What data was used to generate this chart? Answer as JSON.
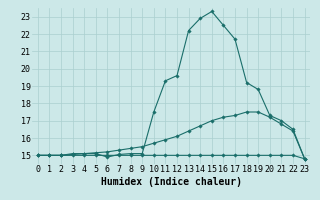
{
  "xlabel": "Humidex (Indice chaleur)",
  "ylabel": "",
  "background_color": "#cce8e8",
  "grid_color": "#aacfcf",
  "line_color": "#1a6e6a",
  "x_values": [
    0,
    1,
    2,
    3,
    4,
    5,
    6,
    7,
    8,
    9,
    10,
    11,
    12,
    13,
    14,
    15,
    16,
    17,
    18,
    19,
    20,
    21,
    22,
    23
  ],
  "line1": [
    15.0,
    15.0,
    15.0,
    15.0,
    15.0,
    15.0,
    15.0,
    15.0,
    15.0,
    15.0,
    15.0,
    15.0,
    15.0,
    15.0,
    15.0,
    15.0,
    15.0,
    15.0,
    15.0,
    15.0,
    15.0,
    15.0,
    15.0,
    14.8
  ],
  "line2": [
    15.0,
    15.0,
    15.0,
    15.05,
    15.1,
    15.15,
    15.2,
    15.3,
    15.4,
    15.5,
    15.7,
    15.9,
    16.1,
    16.4,
    16.7,
    17.0,
    17.2,
    17.3,
    17.5,
    17.5,
    17.2,
    16.8,
    16.4,
    14.8
  ],
  "line3": [
    15.0,
    15.0,
    15.0,
    15.1,
    15.1,
    15.1,
    14.9,
    15.05,
    15.1,
    15.1,
    17.5,
    19.3,
    19.6,
    22.2,
    22.9,
    23.3,
    22.5,
    21.7,
    19.2,
    18.8,
    17.3,
    17.0,
    16.5,
    14.8
  ],
  "ylim": [
    14.5,
    23.5
  ],
  "xlim": [
    -0.5,
    23.5
  ],
  "yticks": [
    15,
    16,
    17,
    18,
    19,
    20,
    21,
    22,
    23
  ],
  "xticks": [
    0,
    1,
    2,
    3,
    4,
    5,
    6,
    7,
    8,
    9,
    10,
    11,
    12,
    13,
    14,
    15,
    16,
    17,
    18,
    19,
    20,
    21,
    22,
    23
  ],
  "tick_fontsize": 6,
  "xlabel_fontsize": 7,
  "marker_size": 1.8,
  "line_width": 0.8
}
